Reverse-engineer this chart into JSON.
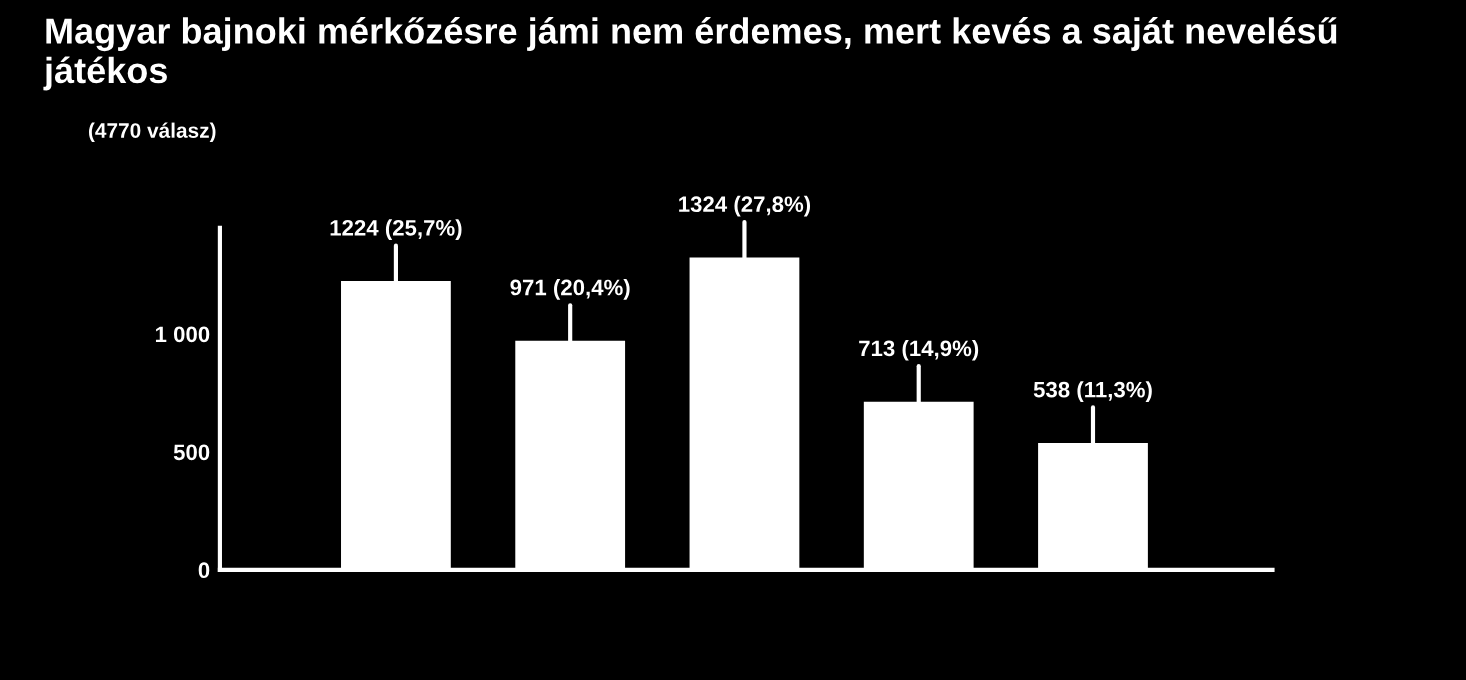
{
  "chart_data": {
    "type": "bar",
    "title": "Magyar bajnoki mérkőzésre jámi nem érdemes, mert kevés a saját nevelésű játékos",
    "subtitle": "(4770 válasz)",
    "categories": [
      null,
      null,
      null,
      null,
      null
    ],
    "values": [
      1224,
      971,
      1324,
      713,
      538
    ],
    "value_labels": [
      "1224 (25,7%)",
      "971 (20,4%)",
      "1324 (27,8%)",
      "713 (14,9%)",
      "538 (11,3%)"
    ],
    "color": "#ffffff",
    "ylim": [
      0,
      1450
    ],
    "yticks": [
      0,
      500,
      {
        "value": 1000,
        "label": "1 000"
      }
    ],
    "grid": false,
    "legend": false
  }
}
